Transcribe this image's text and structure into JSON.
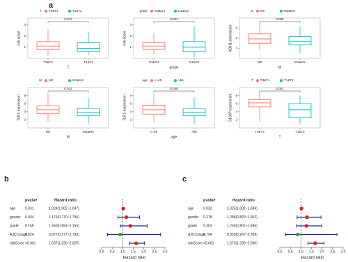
{
  "panel_labels": [
    "a",
    "b",
    "c"
  ],
  "chart_data": [
    {
      "type": "box",
      "legend_title": "T",
      "categories": [
        "T3&T4",
        "T1&T2"
      ],
      "colors": [
        "#f8766d",
        "#00bfc4"
      ],
      "xlabel": "T",
      "ylabel": "risk score",
      "pvalue": "0.072",
      "ylim": [
        0,
        3.6
      ],
      "yticks": [
        1,
        2,
        3
      ],
      "box_stats": [
        [
          0.2,
          0.8,
          1.1,
          1.5,
          2.6
        ],
        [
          0.3,
          0.6,
          0.9,
          1.4,
          2.4
        ]
      ]
    },
    {
      "type": "box",
      "legend_title": "grade",
      "categories": [
        "G3&G4",
        "G1&G2"
      ],
      "colors": [
        "#f8766d",
        "#00bfc4"
      ],
      "xlabel": "grade",
      "ylabel": "risk score",
      "pvalue": "0.024",
      "ylim": [
        0,
        3.6
      ],
      "yticks": [
        1,
        2,
        3
      ],
      "box_stats": [
        [
          0.3,
          0.8,
          1.1,
          1.4,
          2.3
        ],
        [
          0.1,
          0.6,
          1.0,
          1.5,
          2.9
        ]
      ]
    },
    {
      "type": "box",
      "legend_title": "M",
      "categories": [
        "M0",
        "M1&MX"
      ],
      "colors": [
        "#f8766d",
        "#00bfc4"
      ],
      "xlabel": "M",
      "ylabel": "ADH1 expression",
      "pvalue": "0.036",
      "ylim": [
        0,
        12
      ],
      "yticks": [
        3,
        6,
        9
      ],
      "box_stats": [
        [
          2.5,
          4.5,
          5.8,
          7.3,
          10.5
        ],
        [
          1.5,
          4.0,
          5.0,
          6.5,
          9.5
        ]
      ]
    },
    {
      "type": "box",
      "legend_title": "M",
      "categories": [
        "M0",
        "M1&MX"
      ],
      "colors": [
        "#f8766d",
        "#00bfc4"
      ],
      "xlabel": "M",
      "ylabel": "TLR1 expression",
      "pvalue": "0.022",
      "ylim": [
        0,
        10
      ],
      "yticks": [
        2,
        4,
        6,
        8
      ],
      "box_stats": [
        [
          1.5,
          3.5,
          4.5,
          5.5,
          8.5
        ],
        [
          1.0,
          3.0,
          3.8,
          4.8,
          7.5
        ]
      ]
    },
    {
      "type": "box",
      "legend_title": "age",
      "categories": [
        "<=65",
        ">65"
      ],
      "colors": [
        "#f8766d",
        "#00bfc4"
      ],
      "xlabel": "age",
      "ylabel": "TLR1 expression",
      "pvalue": "0.046",
      "ylim": [
        0,
        10
      ],
      "yticks": [
        2,
        4,
        6,
        8
      ],
      "box_stats": [
        [
          1.5,
          3.4,
          4.5,
          5.6,
          8.5
        ],
        [
          1.0,
          3.0,
          3.8,
          4.8,
          7.5
        ]
      ]
    },
    {
      "type": "box",
      "legend_title": "T",
      "categories": [
        "T3&T4",
        "T1&T2"
      ],
      "colors": [
        "#f8766d",
        "#00bfc4"
      ],
      "xlabel": "T",
      "ylabel": "S100P expression",
      "pvalue": "0.001",
      "ylim": [
        0,
        10
      ],
      "yticks": [
        2,
        4,
        6,
        8
      ],
      "box_stats": [
        [
          1.5,
          5.2,
          6.2,
          7.0,
          9.0
        ],
        [
          1.0,
          2.5,
          4.5,
          6.0,
          8.0
        ]
      ]
    },
    {
      "type": "forest",
      "columns": [
        "pvalue",
        "Hazard ratio"
      ],
      "variables": [
        "age",
        "gender",
        "grade",
        "AJCCstage",
        "riskScore"
      ],
      "pvalues": [
        "0.031",
        "0.404",
        "0.159",
        "0.624",
        "<0.001"
      ],
      "hr_labels": [
        "1.024(1.002~1.047)",
        "1.176(0.770~1.796)",
        "1.360(0.892~2.156)",
        "0.877(0.277~2.783)",
        "1.637(1.320~2.025)"
      ],
      "hr": [
        1.024,
        1.176,
        1.36,
        0.877,
        1.637
      ],
      "lower": [
        1.002,
        0.77,
        0.892,
        0.277,
        1.32
      ],
      "upper": [
        1.047,
        1.796,
        2.156,
        2.783,
        2.025
      ],
      "point_colors": [
        "#e31a1c",
        "#e31a1c",
        "#e31a1c",
        "#2ca02c",
        "#e31a1c"
      ],
      "line_color": "#1f2a8a",
      "xlim": [
        0,
        3.1
      ],
      "xticks": [
        {
          "value": 0,
          "label": "0.0"
        },
        {
          "value": 0.5,
          "label": "0.5"
        },
        {
          "value": 1,
          "label": "1.0"
        },
        {
          "value": 1.5,
          "label": "1.5"
        },
        {
          "value": 2,
          "label": "2.0"
        },
        {
          "value": 2.5,
          "label": "2.5"
        },
        {
          "value": 3,
          "label": "3.0"
        }
      ],
      "reference": 1,
      "xlabel": "Hazard ratio"
    },
    {
      "type": "forest",
      "columns": [
        "pvalue",
        "Hazard ratio"
      ],
      "variables": [
        "age",
        "gender",
        "grade",
        "AJCCstage",
        "riskScore"
      ],
      "pvalues": [
        "0.032",
        "0.278",
        "0.303",
        "0.794",
        "<0.001"
      ],
      "hr_labels": [
        "1.025(1.002~1.049)",
        "1.288(0.820~1.952)",
        "1.259(0.801~1.995)",
        "0.850(0.267~2.709)",
        "1.673(1.339~2.090)"
      ],
      "hr": [
        1.025,
        1.288,
        1.259,
        0.85,
        1.673
      ],
      "lower": [
        1.002,
        0.82,
        0.801,
        0.267,
        1.339
      ],
      "upper": [
        1.049,
        1.952,
        1.995,
        2.709,
        2.09
      ],
      "point_colors": [
        "#e31a1c",
        "#e31a1c",
        "#e31a1c",
        "#2ca02c",
        "#e31a1c"
      ],
      "line_color": "#1f2a8a",
      "xlim": [
        0,
        3.1
      ],
      "xticks": [
        {
          "value": 0,
          "label": "0.0"
        },
        {
          "value": 0.5,
          "label": "0.5"
        },
        {
          "value": 1,
          "label": "1.0"
        },
        {
          "value": 1.5,
          "label": "1.5"
        },
        {
          "value": 2,
          "label": "2.0"
        },
        {
          "value": 2.5,
          "label": "2.5"
        },
        {
          "value": 3,
          "label": "3.0"
        }
      ],
      "reference": 1,
      "xlabel": "Hazard ratio"
    }
  ]
}
